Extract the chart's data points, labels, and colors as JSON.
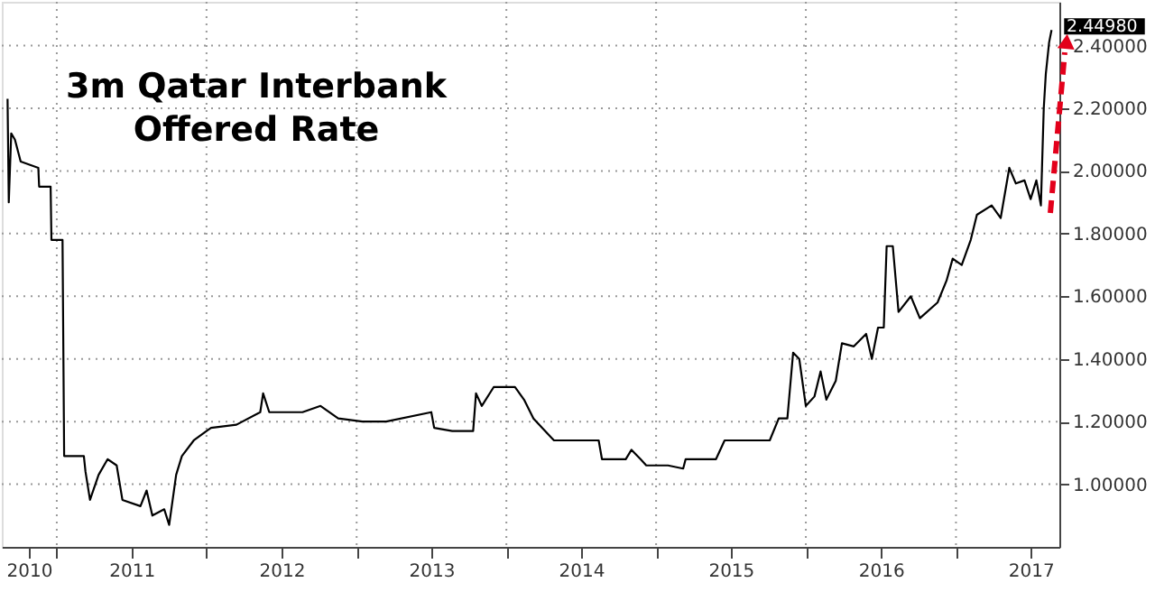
{
  "chart_data": {
    "type": "line",
    "title": "3m Qatar Interbank Offered Rate",
    "x": [
      "2010-09-03",
      "2010-09-06",
      "2010-09-12",
      "2010-09-21",
      "2010-10-05",
      "2010-11-17",
      "2010-11-19",
      "2010-12-17",
      "2010-12-19",
      "2011-01-15",
      "2011-01-19",
      "2011-03-08",
      "2011-03-12",
      "2011-03-23",
      "2011-04-13",
      "2011-05-05",
      "2011-05-27",
      "2011-06-10",
      "2011-07-24",
      "2011-08-08",
      "2011-08-22",
      "2011-09-20",
      "2011-10-02",
      "2011-10-19",
      "2011-11-02",
      "2011-12-01",
      "2012-01-01",
      "2012-01-12",
      "2012-03-14",
      "2012-05-11",
      "2012-05-18",
      "2012-06-02",
      "2012-08-22",
      "2012-10-05",
      "2012-11-17",
      "2013-01-15",
      "2013-03-14",
      "2013-07-02",
      "2013-07-09",
      "2013-08-22",
      "2013-10-12",
      "2013-10-19",
      "2013-11-02",
      "2013-12-01",
      "2014-01-22",
      "2014-02-13",
      "2014-03-08",
      "2014-03-29",
      "2014-04-27",
      "2014-08-14",
      "2014-08-22",
      "2014-10-19",
      "2014-11-02",
      "2014-11-24",
      "2014-12-08",
      "2015-01-30",
      "2015-03-08",
      "2015-03-14",
      "2015-05-27",
      "2015-06-17",
      "2015-08-22",
      "2015-10-05",
      "2015-10-27",
      "2015-11-17",
      "2015-12-01",
      "2015-12-16",
      "2016-01-01",
      "2016-01-22",
      "2016-02-06",
      "2016-02-20",
      "2016-03-14",
      "2016-03-29",
      "2016-04-27",
      "2016-05-27",
      "2016-06-10",
      "2016-06-25",
      "2016-07-09",
      "2016-07-16",
      "2016-07-31",
      "2016-08-14",
      "2016-09-13",
      "2016-10-05",
      "2016-11-17",
      "2016-12-09",
      "2016-12-24",
      "2017-01-15",
      "2017-02-06",
      "2017-02-21",
      "2017-03-29",
      "2017-04-20",
      "2017-05-11",
      "2017-05-27",
      "2017-06-17",
      "2017-07-02",
      "2017-07-16",
      "2017-07-27",
      "2017-08-03",
      "2017-08-08",
      "2017-08-16",
      "2017-08-22"
    ],
    "series": [
      {
        "color": "#000000",
        "values": [
          2.23,
          1.9,
          2.12,
          2.1,
          2.03,
          2.01,
          1.95,
          1.95,
          1.78,
          1.78,
          1.09,
          1.09,
          1.04,
          0.95,
          1.03,
          1.08,
          1.06,
          0.95,
          0.93,
          0.98,
          0.9,
          0.92,
          0.87,
          1.03,
          1.09,
          1.14,
          1.17,
          1.18,
          1.19,
          1.23,
          1.29,
          1.23,
          1.23,
          1.25,
          1.21,
          1.2,
          1.2,
          1.23,
          1.18,
          1.17,
          1.17,
          1.29,
          1.25,
          1.31,
          1.31,
          1.27,
          1.21,
          1.18,
          1.14,
          1.14,
          1.08,
          1.08,
          1.11,
          1.08,
          1.06,
          1.06,
          1.05,
          1.08,
          1.08,
          1.14,
          1.14,
          1.14,
          1.21,
          1.21,
          1.42,
          1.4,
          1.25,
          1.28,
          1.36,
          1.27,
          1.33,
          1.45,
          1.44,
          1.48,
          1.4,
          1.5,
          1.5,
          1.76,
          1.76,
          1.55,
          1.6,
          1.53,
          1.58,
          1.65,
          1.72,
          1.7,
          1.78,
          1.86,
          1.89,
          1.85,
          2.01,
          1.96,
          1.97,
          1.91,
          1.97,
          1.89,
          2.2,
          2.31,
          2.41,
          2.4498
        ]
      }
    ],
    "xlim": [
      "2010-08-20",
      "2017-09-10"
    ],
    "xticks": [
      {
        "value": "2010-10-25",
        "label": "2010"
      },
      {
        "value": "2011-01-01",
        "label": null
      },
      {
        "value": "2011-07-02",
        "label": "2011"
      },
      {
        "value": "2012-01-01",
        "label": null
      },
      {
        "value": "2012-07-02",
        "label": "2012"
      },
      {
        "value": "2013-01-01",
        "label": null
      },
      {
        "value": "2013-07-02",
        "label": "2013"
      },
      {
        "value": "2014-01-01",
        "label": null
      },
      {
        "value": "2014-07-02",
        "label": "2014"
      },
      {
        "value": "2015-01-01",
        "label": null
      },
      {
        "value": "2015-07-02",
        "label": "2015"
      },
      {
        "value": "2016-01-01",
        "label": null
      },
      {
        "value": "2016-07-02",
        "label": "2016"
      },
      {
        "value": "2017-01-01",
        "label": null
      },
      {
        "value": "2017-07-02",
        "label": "2017"
      }
    ],
    "ylim": [
      0.8,
      2.54
    ],
    "yticks": [
      {
        "value": 1.0,
        "label": "1.00000"
      },
      {
        "value": 1.2,
        "label": "1.20000"
      },
      {
        "value": 1.4,
        "label": "1.40000"
      },
      {
        "value": 1.6,
        "label": "1.60000"
      },
      {
        "value": 1.8,
        "label": "1.80000"
      },
      {
        "value": 2.0,
        "label": "2.00000"
      },
      {
        "value": 2.2,
        "label": "2.20000"
      },
      {
        "value": 2.4,
        "label": "2.40000"
      }
    ],
    "annotations": [
      {
        "text": "2.44980",
        "x": "2017-08-22",
        "y": 2.4498
      }
    ],
    "grid": true,
    "marker": "none",
    "line_style": "solid"
  }
}
